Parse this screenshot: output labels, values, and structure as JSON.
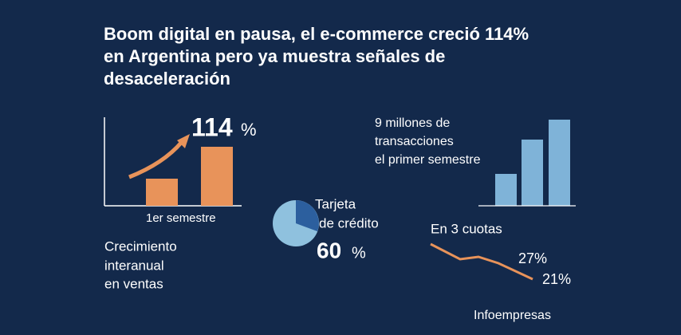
{
  "title": [
    "Boom digital en pausa, el e-commerce creció 114%",
    "en Argentina pero ya muestra señales de",
    "desaceleración"
  ],
  "growth": {
    "number": "114",
    "unit": "%",
    "period": "1er semestre",
    "caption": [
      "Crecimiento",
      "interanual",
      "en ventas"
    ]
  },
  "card": {
    "label": [
      "Tarjeta",
      "de crédito"
    ],
    "number": "60",
    "unit": "%"
  },
  "transactions": {
    "caption": [
      "9 millones de",
      "transacciones",
      "el primer semestre"
    ]
  },
  "installments": {
    "label": "En 3 cuotas",
    "first": "27%",
    "second": "21%"
  },
  "source": "Infoempresas"
}
